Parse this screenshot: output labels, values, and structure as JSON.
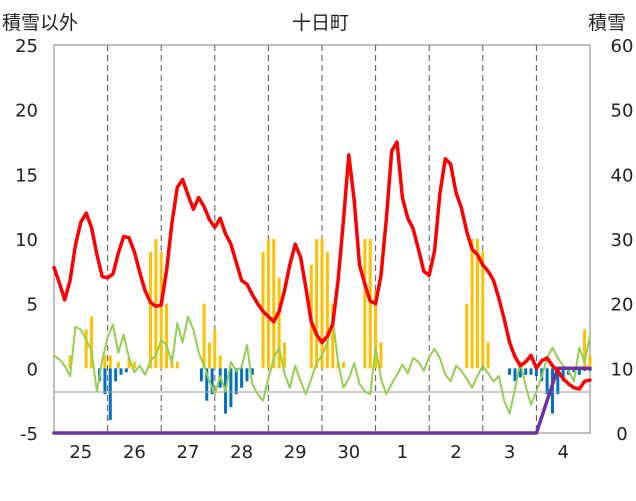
{
  "chart_data": {
    "type": "bar+line",
    "title": "十日町",
    "ylabel_left": "積雪以外",
    "ylabel_right": "積雪",
    "ylim_left": [
      -5,
      25
    ],
    "ylim_right": [
      0,
      60
    ],
    "yticks_left": [
      "25",
      "20",
      "15",
      "10",
      "5",
      "0",
      "-5"
    ],
    "yticks_right": [
      "60",
      "50",
      "40",
      "30",
      "20",
      "10",
      "0"
    ],
    "x_tick_labels": [
      "25",
      "26",
      "27",
      "28",
      "29",
      "30",
      "1",
      "2",
      "3",
      "4"
    ],
    "grid": "vertical dashed at day boundaries",
    "series": [
      {
        "name": "temperature",
        "axis": "left",
        "color": "#ff0000",
        "x": [
          0,
          0.1,
          0.2,
          0.3,
          0.4,
          0.5,
          0.6,
          0.7,
          0.8,
          0.9,
          1.0,
          1.1,
          1.2,
          1.3,
          1.4,
          1.5,
          1.6,
          1.7,
          1.8,
          1.9,
          2.0,
          2.1,
          2.2,
          2.3,
          2.4,
          2.5,
          2.6,
          2.7,
          2.8,
          2.9,
          3.0,
          3.1,
          3.2,
          3.3,
          3.4,
          3.5,
          3.6,
          3.7,
          3.8,
          3.9,
          4.0,
          4.1,
          4.2,
          4.3,
          4.4,
          4.5,
          4.6,
          4.7,
          4.8,
          4.9,
          5.0,
          5.1,
          5.2,
          5.3,
          5.4,
          5.5,
          5.6,
          5.7,
          5.8,
          5.9,
          6.0,
          6.1,
          6.2,
          6.3,
          6.4,
          6.5,
          6.6,
          6.7,
          6.8,
          6.9,
          7.0,
          7.1,
          7.2,
          7.3,
          7.4,
          7.5,
          7.6,
          7.7,
          7.8,
          7.9,
          8.0,
          8.1,
          8.2,
          8.3,
          8.4,
          8.5,
          8.6,
          8.7,
          8.8,
          8.9,
          9.0,
          9.1,
          9.2,
          9.3,
          9.4,
          9.5,
          9.6,
          9.7,
          9.8,
          9.9,
          10.0
        ],
        "values": [
          7.8,
          6.6,
          5.3,
          6.8,
          9.5,
          11.3,
          12.0,
          10.9,
          8.8,
          7.1,
          7.0,
          7.3,
          8.9,
          10.2,
          10.1,
          9.0,
          7.4,
          6.0,
          5.1,
          4.8,
          4.9,
          7.6,
          11.2,
          14.0,
          14.6,
          13.4,
          12.3,
          13.2,
          12.5,
          11.5,
          10.9,
          11.6,
          10.4,
          9.6,
          8.2,
          6.8,
          6.5,
          5.7,
          5.0,
          4.4,
          4.0,
          3.6,
          4.4,
          6.0,
          8.0,
          9.6,
          8.6,
          6.2,
          3.6,
          2.6,
          2.0,
          2.5,
          3.4,
          6.8,
          11.4,
          16.5,
          13.0,
          8.0,
          6.5,
          5.2,
          5.0,
          7.2,
          11.5,
          16.8,
          17.5,
          13.2,
          11.6,
          10.8,
          9.2,
          7.5,
          7.2,
          9.1,
          13.5,
          16.2,
          15.8,
          13.6,
          12.4,
          10.6,
          9.2,
          8.8,
          8.0,
          7.5,
          6.8,
          5.4,
          3.8,
          2.0,
          0.9,
          0.2,
          0.5,
          1.0,
          0.0,
          0.6,
          0.8,
          0.2,
          -0.2,
          -0.8,
          -1.2,
          -1.5,
          -1.6,
          -1.0,
          -0.9
        ]
      },
      {
        "name": "wind",
        "axis": "left",
        "color": "#92d050",
        "x": [
          0,
          0.1,
          0.2,
          0.3,
          0.4,
          0.5,
          0.6,
          0.7,
          0.8,
          0.9,
          1.0,
          1.1,
          1.2,
          1.3,
          1.4,
          1.5,
          1.6,
          1.7,
          1.8,
          1.9,
          2.0,
          2.1,
          2.2,
          2.3,
          2.4,
          2.5,
          2.6,
          2.7,
          2.8,
          2.9,
          3.0,
          3.1,
          3.2,
          3.3,
          3.4,
          3.5,
          3.6,
          3.7,
          3.8,
          3.9,
          4.0,
          4.1,
          4.2,
          4.3,
          4.4,
          4.5,
          4.6,
          4.7,
          4.8,
          4.9,
          5.0,
          5.1,
          5.2,
          5.3,
          5.4,
          5.5,
          5.6,
          5.7,
          5.8,
          5.9,
          6.0,
          6.1,
          6.2,
          6.3,
          6.4,
          6.5,
          6.6,
          6.7,
          6.8,
          6.9,
          7.0,
          7.1,
          7.2,
          7.3,
          7.4,
          7.5,
          7.6,
          7.7,
          7.8,
          7.9,
          8.0,
          8.1,
          8.2,
          8.3,
          8.4,
          8.5,
          8.6,
          8.7,
          8.8,
          8.9,
          9.0,
          9.1,
          9.2,
          9.3,
          9.4,
          9.5,
          9.6,
          9.7,
          9.8,
          9.9,
          10.0
        ],
        "values": [
          1.0,
          0.7,
          0.2,
          -0.6,
          3.2,
          3.0,
          2.2,
          1.4,
          -1.8,
          0.6,
          2.4,
          3.4,
          1.2,
          2.6,
          0.8,
          -0.3,
          0.2,
          -0.5,
          0.6,
          1.0,
          2.2,
          1.8,
          0.4,
          3.5,
          2.0,
          4.0,
          3.0,
          1.2,
          0.2,
          -1.0,
          -2.0,
          -0.6,
          -1.8,
          0.5,
          -0.2,
          0.1,
          1.8,
          -1.2,
          -2.0,
          -2.5,
          -0.8,
          0.8,
          1.6,
          -0.4,
          -1.5,
          0.2,
          -1.0,
          -2.0,
          -0.8,
          0.4,
          1.0,
          2.0,
          3.8,
          0.5,
          -1.5,
          -0.8,
          0.4,
          -1.2,
          -1.8,
          -2.0,
          1.6,
          -0.8,
          -2.0,
          -1.2,
          -0.5,
          0.3,
          -0.4,
          0.8,
          0.5,
          -0.2,
          0.9,
          1.5,
          0.8,
          -0.5,
          -1.0,
          0.2,
          -0.2,
          -0.8,
          -1.5,
          -0.6,
          0.2,
          -0.4,
          -1.0,
          -0.6,
          -2.5,
          -3.5,
          -1.6,
          0.5,
          -1.4,
          -2.8,
          -1.8,
          -0.6,
          0.8,
          1.6,
          0.8,
          0.2,
          -0.2,
          -1.0,
          1.6,
          0.5,
          2.5
        ]
      },
      {
        "name": "snow_depth",
        "axis": "right",
        "color": "#7030a0",
        "x": [
          0,
          8.8,
          8.9,
          9.0,
          9.2,
          9.4,
          9.6,
          9.8,
          10.0
        ],
        "values": [
          0,
          0,
          0,
          0,
          5,
          10,
          10,
          10,
          10
        ]
      },
      {
        "name": "precipitation",
        "axis": "left",
        "type": "bar",
        "color": "#ffc000",
        "x": [
          0.3,
          0.6,
          0.7,
          0.95,
          1.05,
          1.2,
          1.4,
          1.5,
          1.8,
          1.9,
          2.0,
          2.1,
          2.2,
          2.3,
          2.8,
          2.9,
          3.0,
          3.1,
          3.9,
          4.0,
          4.1,
          4.2,
          4.3,
          4.8,
          4.9,
          5.0,
          5.1,
          5.2,
          5.3,
          5.4,
          5.8,
          5.9,
          6.0,
          6.1,
          7.7,
          7.8,
          7.9,
          8.0,
          8.1,
          9.9,
          10.0
        ],
        "values": [
          1.0,
          3.0,
          4.0,
          1.0,
          1.0,
          0.5,
          0.8,
          0.5,
          9.0,
          10.0,
          9.0,
          5.0,
          1.0,
          0.5,
          5.0,
          2.0,
          3.0,
          1.0,
          9.0,
          10.0,
          10.0,
          7.0,
          2.0,
          8.0,
          10.0,
          10.0,
          9.0,
          5.0,
          0.5,
          0.5,
          10.0,
          10.0,
          6.0,
          2.0,
          5.0,
          10.0,
          10.0,
          9.0,
          2.0,
          3.0,
          1.0
        ]
      },
      {
        "name": "negative_bars",
        "axis": "left",
        "type": "bar",
        "color": "#0070c0",
        "x": [
          0.85,
          0.95,
          1.05,
          1.15,
          1.25,
          1.35,
          2.75,
          2.85,
          2.95,
          3.1,
          3.2,
          3.3,
          3.4,
          3.5,
          3.6,
          3.7,
          8.5,
          8.6,
          8.7,
          8.8,
          8.9,
          9.0,
          9.1,
          9.2,
          9.3,
          9.4,
          9.5,
          9.6,
          9.7,
          9.8,
          9.9,
          10.0
        ],
        "values": [
          -1.0,
          -2.0,
          -4.0,
          -1.0,
          -0.5,
          -0.3,
          -1.0,
          -2.5,
          -2.0,
          -1.5,
          -3.5,
          -3.0,
          -2.0,
          -1.5,
          -1.0,
          -0.5,
          -0.5,
          -1.0,
          -0.7,
          -0.5,
          -0.5,
          -0.6,
          -1.0,
          -2.0,
          -3.5,
          -2.0,
          -1.0,
          -0.5,
          -0.3,
          -0.5,
          -0.2,
          -0.2
        ]
      }
    ]
  }
}
